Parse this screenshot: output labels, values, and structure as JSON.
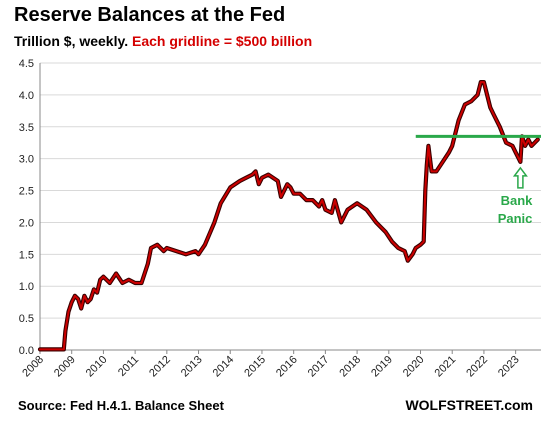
{
  "header": {
    "title": "Reserve Balances at the Fed",
    "subtitle_black": "Trillion $, weekly.",
    "subtitle_red": "Each gridline = $500 billion"
  },
  "footer": {
    "source": "Source: Fed H.4.1. Balance Sheet",
    "brand": "WOLFSTREET.com"
  },
  "colors": {
    "series": "#cc0000",
    "shadow": "#3a0000",
    "reference_line": "#2aa84a",
    "grid": "#d9d9d9"
  },
  "chart_data": {
    "type": "line",
    "title": "Reserve Balances at the Fed",
    "subtitle": "Trillion $, weekly. Each gridline = $500 billion",
    "xlabel": "",
    "ylabel": "",
    "xlim": [
      2008.0,
      2023.8
    ],
    "ylim": [
      0,
      4.5
    ],
    "yticks": [
      "0.0",
      "0.5",
      "1.0",
      "1.5",
      "2.0",
      "2.5",
      "3.0",
      "3.5",
      "4.0",
      "4.5"
    ],
    "xticks": [
      "2008",
      "2009",
      "2010",
      "2011",
      "2012",
      "2013",
      "2014",
      "2015",
      "2016",
      "2017",
      "2018",
      "2019",
      "2020",
      "2021",
      "2022",
      "2023"
    ],
    "grid": true,
    "series": [
      {
        "x": [
          2008.0,
          2008.5,
          2008.7,
          2008.75,
          2008.8,
          2008.9,
          2009.0,
          2009.1,
          2009.2,
          2009.3,
          2009.4,
          2009.5,
          2009.6,
          2009.7,
          2009.8,
          2009.9,
          2010.0,
          2010.2,
          2010.4,
          2010.6,
          2010.8,
          2011.0,
          2011.2,
          2011.4,
          2011.5,
          2011.7,
          2011.9,
          2012.0,
          2012.3,
          2012.6,
          2012.9,
          2013.0,
          2013.2,
          2013.5,
          2013.7,
          2014.0,
          2014.3,
          2014.5,
          2014.7,
          2014.8,
          2014.9,
          2015.0,
          2015.2,
          2015.5,
          2015.6,
          2015.8,
          2015.9,
          2016.0,
          2016.2,
          2016.4,
          2016.6,
          2016.8,
          2016.9,
          2017.0,
          2017.2,
          2017.3,
          2017.5,
          2017.7,
          2018.0,
          2018.3,
          2018.6,
          2018.9,
          2019.1,
          2019.3,
          2019.5,
          2019.6,
          2019.75,
          2019.85,
          2020.0,
          2020.1,
          2020.15,
          2020.2,
          2020.25,
          2020.3,
          2020.35,
          2020.5,
          2020.7,
          2020.9,
          2021.0,
          2021.2,
          2021.4,
          2021.6,
          2021.8,
          2021.9,
          2022.0,
          2022.2,
          2022.3,
          2022.5,
          2022.7,
          2022.9,
          2023.0,
          2023.1,
          2023.15,
          2023.2,
          2023.3,
          2023.4,
          2023.5,
          2023.6,
          2023.7
        ],
        "y": [
          0.01,
          0.01,
          0.01,
          0.01,
          0.3,
          0.6,
          0.75,
          0.85,
          0.8,
          0.65,
          0.85,
          0.75,
          0.8,
          0.95,
          0.9,
          1.1,
          1.15,
          1.05,
          1.2,
          1.05,
          1.1,
          1.05,
          1.05,
          1.35,
          1.6,
          1.65,
          1.55,
          1.6,
          1.55,
          1.5,
          1.55,
          1.5,
          1.65,
          2.0,
          2.3,
          2.55,
          2.65,
          2.7,
          2.75,
          2.8,
          2.6,
          2.7,
          2.75,
          2.65,
          2.4,
          2.6,
          2.55,
          2.45,
          2.45,
          2.35,
          2.35,
          2.25,
          2.35,
          2.2,
          2.15,
          2.35,
          2.0,
          2.2,
          2.3,
          2.2,
          2.0,
          1.85,
          1.7,
          1.6,
          1.55,
          1.4,
          1.5,
          1.6,
          1.65,
          1.7,
          2.5,
          2.9,
          3.2,
          3.0,
          2.8,
          2.8,
          2.95,
          3.1,
          3.2,
          3.6,
          3.85,
          3.9,
          4.0,
          4.2,
          4.2,
          3.8,
          3.7,
          3.5,
          3.25,
          3.2,
          3.1,
          3.0,
          2.95,
          3.35,
          3.2,
          3.3,
          3.2,
          3.25,
          3.3
        ]
      }
    ],
    "reference_line": {
      "y": 3.35,
      "x_from": 2019.85,
      "x_to": 2023.8
    },
    "annotations": [
      {
        "text_lines": [
          "Bank",
          "Panic"
        ],
        "x": 2023.15,
        "y": 2.95
      }
    ]
  }
}
